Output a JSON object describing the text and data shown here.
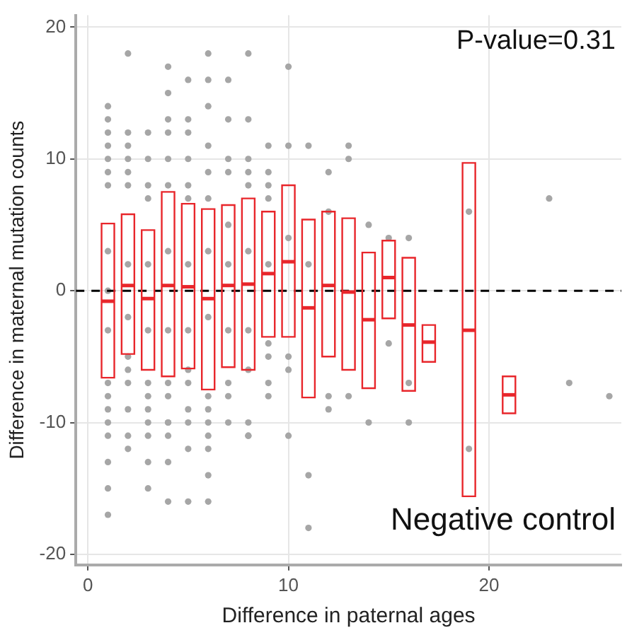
{
  "chart_data": {
    "type": "box",
    "xlabel": "Difference in paternal ages",
    "ylabel": "Difference in maternal mutation counts",
    "annotations": [
      "P-value=0.31",
      "Negative control"
    ],
    "xlim": [
      -0.6,
      26.6
    ],
    "ylim": [
      -20.8,
      20.9
    ],
    "xticks": [
      0,
      10,
      20
    ],
    "yticks": [
      -20,
      -10,
      0,
      10,
      20
    ],
    "grid": true,
    "legend": false,
    "marker": "circle",
    "ref_lines": [
      {
        "axis": "y",
        "value": 0,
        "color": "#000000",
        "line_style": "dashed"
      }
    ],
    "series": [
      {
        "type": "scatter",
        "color": "#a6a6a6",
        "x": [
          1,
          1,
          1,
          1,
          1,
          1,
          1,
          1,
          1,
          1,
          1,
          1,
          1,
          1,
          1,
          1,
          1,
          1,
          2,
          2,
          2,
          2,
          2,
          2,
          2,
          2,
          2,
          2,
          2,
          2,
          2,
          2,
          3,
          3,
          3,
          3,
          3,
          3,
          3,
          3,
          3,
          3,
          3,
          3,
          3,
          4,
          4,
          4,
          4,
          4,
          4,
          4,
          4,
          4,
          4,
          4,
          4,
          4,
          4,
          4,
          5,
          5,
          5,
          5,
          5,
          5,
          5,
          5,
          5,
          5,
          5,
          5,
          5,
          5,
          6,
          6,
          6,
          6,
          6,
          6,
          6,
          6,
          6,
          6,
          6,
          6,
          6,
          6,
          6,
          7,
          7,
          7,
          7,
          7,
          7,
          7,
          7,
          7,
          7,
          8,
          8,
          8,
          8,
          8,
          8,
          8,
          8,
          8,
          8,
          8,
          9,
          9,
          9,
          9,
          9,
          9,
          9,
          9,
          9,
          10,
          10,
          10,
          10,
          10,
          10,
          11,
          11,
          11,
          11,
          12,
          12,
          12,
          12,
          13,
          13,
          13,
          14,
          14,
          15,
          15,
          16,
          16,
          16,
          19,
          19,
          23,
          24,
          26
        ],
        "values": [
          14,
          13,
          12,
          11,
          10,
          9,
          8,
          3,
          0,
          -3,
          -7,
          -8,
          -9,
          -10,
          -11,
          -13,
          -15,
          -17,
          18,
          12,
          11,
          10,
          9,
          8,
          2,
          -2,
          -5,
          -6,
          -7,
          -9,
          -11,
          -12,
          12,
          10,
          8,
          7,
          2,
          -3,
          -7,
          -8,
          -9,
          -10,
          -11,
          -13,
          -15,
          17,
          15,
          13,
          12,
          10,
          8,
          3,
          -3,
          -7,
          -8,
          -10,
          -10,
          -11,
          -13,
          -16,
          16,
          13,
          12,
          10,
          8,
          7,
          2,
          -3,
          -6,
          -7,
          -9,
          -10,
          -12,
          -16,
          18,
          16,
          14,
          11,
          9,
          7,
          3,
          -2,
          -8,
          -9,
          -10,
          -11,
          -12,
          -14,
          -16,
          16,
          13,
          10,
          9,
          5,
          2,
          -3,
          -7,
          -8,
          -10,
          18,
          13,
          10,
          9,
          8,
          3,
          -3,
          -6,
          -10,
          -11,
          -11,
          11,
          9,
          8,
          7,
          2,
          -4,
          -5,
          -7,
          -8,
          17,
          11,
          4,
          -5,
          -6,
          -11,
          11,
          2,
          -14,
          -18,
          9,
          6,
          -8,
          -9,
          11,
          10,
          -8,
          5,
          -10,
          4,
          -4,
          4,
          -7,
          -10,
          6,
          -12,
          7,
          -7,
          -8
        ]
      },
      {
        "type": "box",
        "color": "#e8262b",
        "x": [
          1,
          2,
          3,
          4,
          5,
          6,
          7,
          8,
          9,
          10,
          11,
          12,
          13,
          14,
          15,
          16,
          17,
          19,
          21
        ],
        "boxes": [
          {
            "low": -6.6,
            "q1": -6.6,
            "median": -0.8,
            "q3": 5.1,
            "high": 5.1
          },
          {
            "low": -4.8,
            "q1": -4.8,
            "median": 0.4,
            "q3": 5.8,
            "high": 5.8
          },
          {
            "low": -6.0,
            "q1": -6.0,
            "median": -0.6,
            "q3": 4.6,
            "high": 4.6
          },
          {
            "low": -6.5,
            "q1": -6.5,
            "median": 0.4,
            "q3": 7.5,
            "high": 7.5
          },
          {
            "low": -5.9,
            "q1": -5.9,
            "median": 0.3,
            "q3": 6.6,
            "high": 6.6
          },
          {
            "low": -7.5,
            "q1": -7.5,
            "median": -0.6,
            "q3": 6.2,
            "high": 6.2
          },
          {
            "low": -5.8,
            "q1": -5.8,
            "median": 0.4,
            "q3": 6.5,
            "high": 6.5
          },
          {
            "low": -6.0,
            "q1": -6.0,
            "median": 0.5,
            "q3": 7.0,
            "high": 7.0
          },
          {
            "low": -3.5,
            "q1": -3.5,
            "median": 1.3,
            "q3": 6.0,
            "high": 6.0
          },
          {
            "low": -3.5,
            "q1": -3.5,
            "median": 2.2,
            "q3": 8.0,
            "high": 8.0
          },
          {
            "low": -8.1,
            "q1": -8.1,
            "median": -1.3,
            "q3": 5.4,
            "high": 5.4
          },
          {
            "low": -5.0,
            "q1": -5.0,
            "median": 0.4,
            "q3": 6.0,
            "high": 6.0
          },
          {
            "low": -6.0,
            "q1": -6.0,
            "median": -0.1,
            "q3": 5.5,
            "high": 5.5
          },
          {
            "low": -7.4,
            "q1": -7.4,
            "median": -2.2,
            "q3": 2.9,
            "high": 2.9
          },
          {
            "low": -2.1,
            "q1": -2.1,
            "median": 1.0,
            "q3": 3.8,
            "high": 3.8
          },
          {
            "low": -7.6,
            "q1": -7.6,
            "median": -2.6,
            "q3": 2.5,
            "high": 2.5
          },
          {
            "low": -5.4,
            "q1": -5.4,
            "median": -3.9,
            "q3": -2.6,
            "high": -2.6
          },
          {
            "low": -15.6,
            "q1": -15.6,
            "median": -3.0,
            "q3": 9.7,
            "high": 9.7
          },
          {
            "low": -9.3,
            "q1": -9.3,
            "median": -7.9,
            "q3": -6.5,
            "high": -6.5
          }
        ]
      }
    ]
  }
}
